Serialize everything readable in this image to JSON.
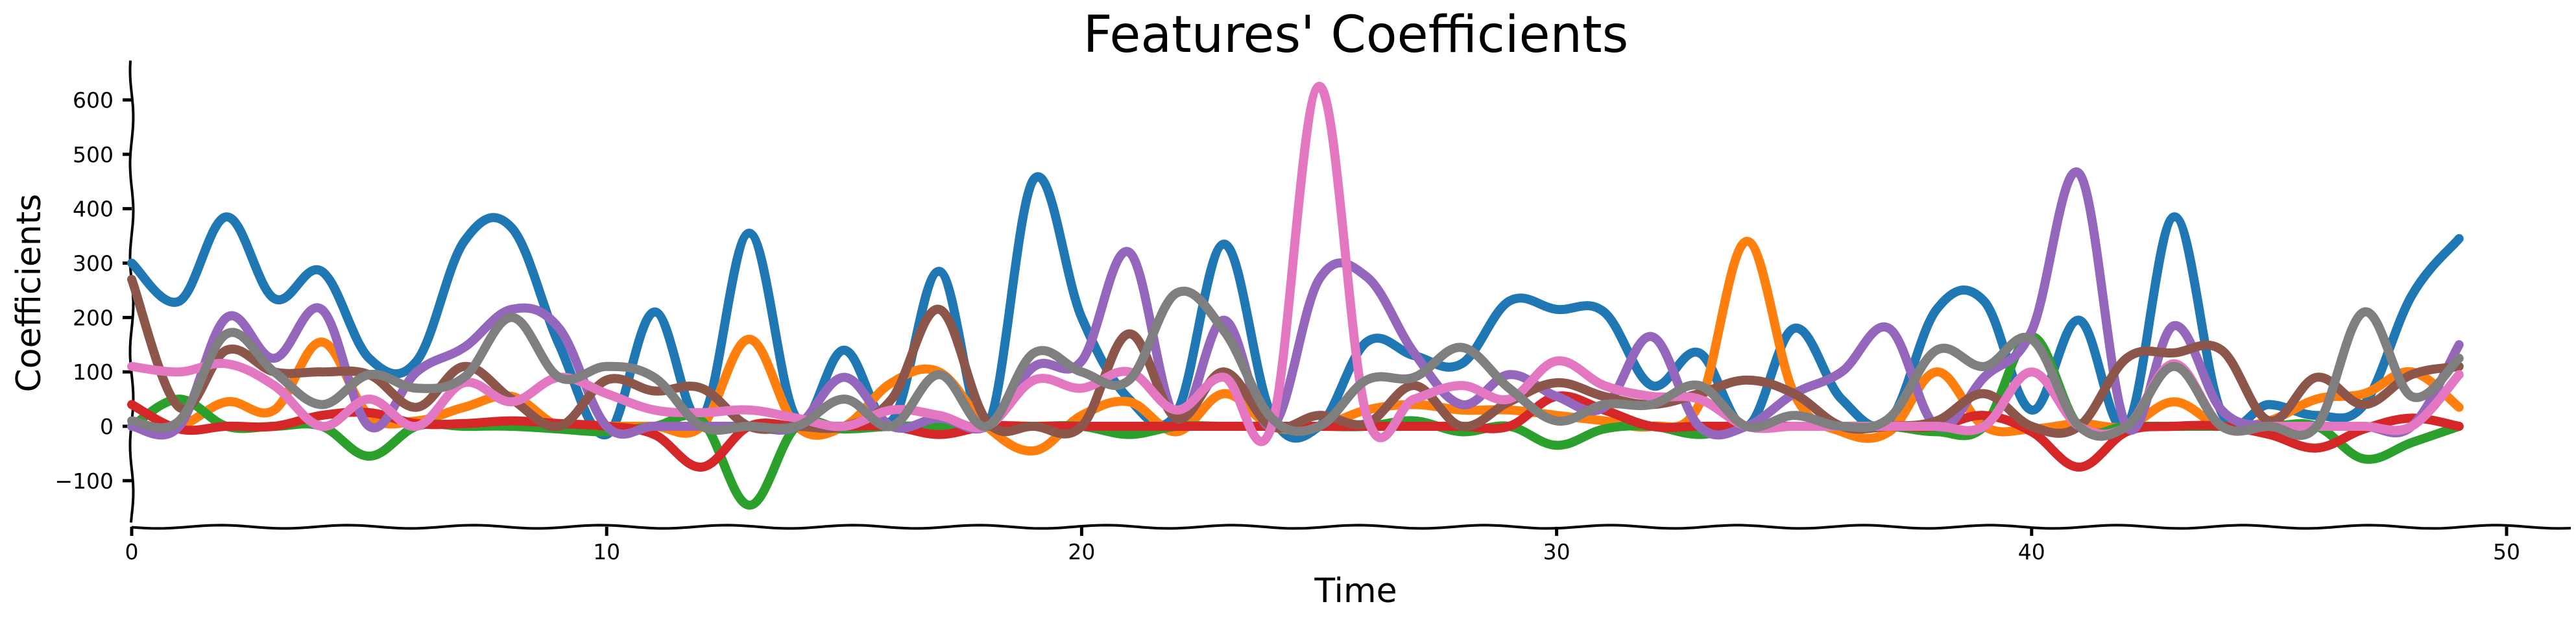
{
  "chart_data": {
    "type": "line",
    "title": "Features' Coefficients",
    "xlabel": "Time",
    "ylabel": "Coefficients",
    "xlim": [
      0,
      51
    ],
    "ylim": [
      -180,
      670
    ],
    "xticks": [
      0,
      10,
      20,
      30,
      40,
      50
    ],
    "yticks": [
      -100,
      0,
      100,
      200,
      300,
      400,
      500,
      600
    ],
    "grid": false,
    "legend": "none",
    "x": [
      0,
      1,
      2,
      3,
      4,
      5,
      6,
      7,
      8,
      9,
      10,
      11,
      12,
      13,
      14,
      15,
      16,
      17,
      18,
      19,
      20,
      21,
      22,
      23,
      24,
      25,
      26,
      27,
      28,
      29,
      30,
      31,
      32,
      33,
      34,
      35,
      36,
      37,
      38,
      39,
      40,
      41,
      42,
      43,
      44,
      45,
      46,
      47,
      48,
      49
    ],
    "series": [
      {
        "color": "#1f77b4",
        "values": [
          300,
          230,
          385,
          235,
          285,
          125,
          120,
          340,
          365,
          150,
          -15,
          210,
          15,
          355,
          15,
          140,
          10,
          285,
          0,
          455,
          200,
          50,
          25,
          335,
          20,
          0,
          155,
          130,
          115,
          230,
          215,
          210,
          75,
          135,
          0,
          180,
          50,
          10,
          215,
          230,
          30,
          195,
          0,
          385,
          25,
          40,
          20,
          40,
          240,
          345
        ]
      },
      {
        "color": "#ff7f0e",
        "values": [
          0,
          0,
          45,
          30,
          155,
          20,
          10,
          35,
          55,
          0,
          0,
          0,
          0,
          160,
          0,
          0,
          80,
          100,
          0,
          -45,
          20,
          45,
          -10,
          60,
          0,
          0,
          30,
          40,
          30,
          30,
          20,
          10,
          0,
          40,
          340,
          60,
          -10,
          -10,
          100,
          0,
          -5,
          5,
          0,
          45,
          0,
          10,
          50,
          60,
          100,
          35
        ]
      },
      {
        "color": "#2ca02c",
        "values": [
          0,
          50,
          0,
          0,
          0,
          -55,
          0,
          0,
          0,
          -5,
          -10,
          0,
          10,
          -145,
          0,
          -5,
          0,
          0,
          0,
          0,
          0,
          -15,
          0,
          0,
          0,
          0,
          0,
          10,
          -10,
          0,
          -35,
          -5,
          0,
          -15,
          0,
          0,
          0,
          0,
          -10,
          0,
          165,
          0,
          0,
          0,
          0,
          0,
          0,
          -60,
          -30,
          0
        ]
      },
      {
        "color": "#d62728",
        "values": [
          40,
          -5,
          0,
          0,
          20,
          25,
          5,
          5,
          10,
          5,
          0,
          -15,
          -75,
          0,
          0,
          0,
          0,
          -15,
          0,
          0,
          0,
          0,
          0,
          0,
          0,
          0,
          0,
          0,
          0,
          0,
          55,
          30,
          0,
          0,
          0,
          0,
          0,
          0,
          0,
          20,
          -10,
          -75,
          -10,
          0,
          0,
          -15,
          -40,
          -5,
          15,
          0
        ]
      },
      {
        "color": "#9467bd",
        "values": [
          0,
          0,
          200,
          125,
          215,
          0,
          100,
          145,
          215,
          180,
          0,
          0,
          0,
          0,
          0,
          90,
          0,
          15,
          0,
          110,
          120,
          320,
          15,
          195,
          0,
          270,
          275,
          135,
          40,
          95,
          55,
          35,
          165,
          0,
          0,
          60,
          100,
          180,
          0,
          90,
          175,
          465,
          0,
          185,
          30,
          0,
          0,
          0,
          0,
          150
        ]
      },
      {
        "color": "#8c564b",
        "values": [
          270,
          35,
          140,
          100,
          100,
          95,
          35,
          110,
          50,
          0,
          85,
          65,
          70,
          0,
          0,
          0,
          50,
          215,
          10,
          0,
          0,
          170,
          15,
          100,
          0,
          20,
          5,
          75,
          0,
          45,
          80,
          55,
          40,
          60,
          85,
          60,
          0,
          0,
          10,
          60,
          0,
          0,
          125,
          135,
          140,
          10,
          90,
          40,
          95,
          110
        ]
      },
      {
        "color": "#e377c2",
        "values": [
          110,
          100,
          115,
          75,
          0,
          50,
          0,
          80,
          45,
          90,
          60,
          30,
          25,
          30,
          15,
          0,
          30,
          20,
          0,
          85,
          70,
          100,
          30,
          90,
          0,
          625,
          20,
          50,
          75,
          50,
          120,
          75,
          55,
          50,
          0,
          0,
          0,
          0,
          0,
          0,
          100,
          0,
          0,
          115,
          0,
          0,
          0,
          0,
          0,
          95
        ]
      },
      {
        "color": "#7f7f7f",
        "values": [
          10,
          10,
          170,
          100,
          40,
          95,
          70,
          90,
          200,
          90,
          110,
          90,
          0,
          0,
          0,
          50,
          0,
          95,
          0,
          135,
          100,
          85,
          245,
          175,
          15,
          0,
          85,
          90,
          145,
          70,
          10,
          40,
          40,
          75,
          0,
          20,
          0,
          15,
          140,
          110,
          160,
          0,
          0,
          110,
          0,
          0,
          0,
          210,
          55,
          125
        ]
      }
    ]
  }
}
